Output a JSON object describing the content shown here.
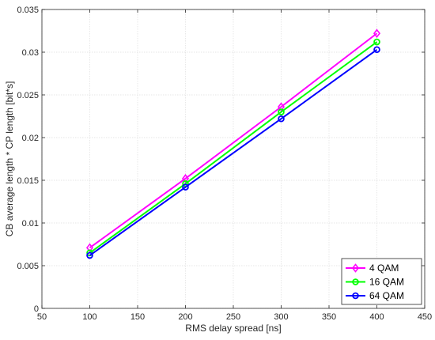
{
  "chart_data": {
    "type": "line",
    "title": "",
    "xlabel": "RMS delay spread [ns]",
    "ylabel": "CB average length * CP length [bit*s]",
    "xlim": [
      50,
      450
    ],
    "ylim": [
      0,
      0.035
    ],
    "xticks": [
      50,
      100,
      150,
      200,
      250,
      300,
      350,
      400,
      450
    ],
    "yticks": [
      0,
      0.005,
      0.01,
      0.015,
      0.02,
      0.025,
      0.03,
      0.035
    ],
    "xtick_labels": [
      "50",
      "100",
      "150",
      "200",
      "250",
      "300",
      "350",
      "400",
      "450"
    ],
    "ytick_labels": [
      "0",
      "0.005",
      "0.01",
      "0.015",
      "0.02",
      "0.025",
      "0.03",
      "0.035"
    ],
    "grid": true,
    "legend_position": "bottom-right",
    "x": [
      100,
      200,
      300,
      400
    ],
    "series": [
      {
        "name": "4 QAM",
        "color": "#ff00ff",
        "marker": "diamond",
        "values": [
          0.0071,
          0.0152,
          0.0236,
          0.0322
        ]
      },
      {
        "name": "16 QAM",
        "color": "#00ff00",
        "marker": "circle",
        "values": [
          0.0065,
          0.0146,
          0.023,
          0.0312
        ]
      },
      {
        "name": "64 QAM",
        "color": "#0000ff",
        "marker": "circle",
        "values": [
          0.0062,
          0.0142,
          0.0222,
          0.0303
        ]
      }
    ]
  }
}
